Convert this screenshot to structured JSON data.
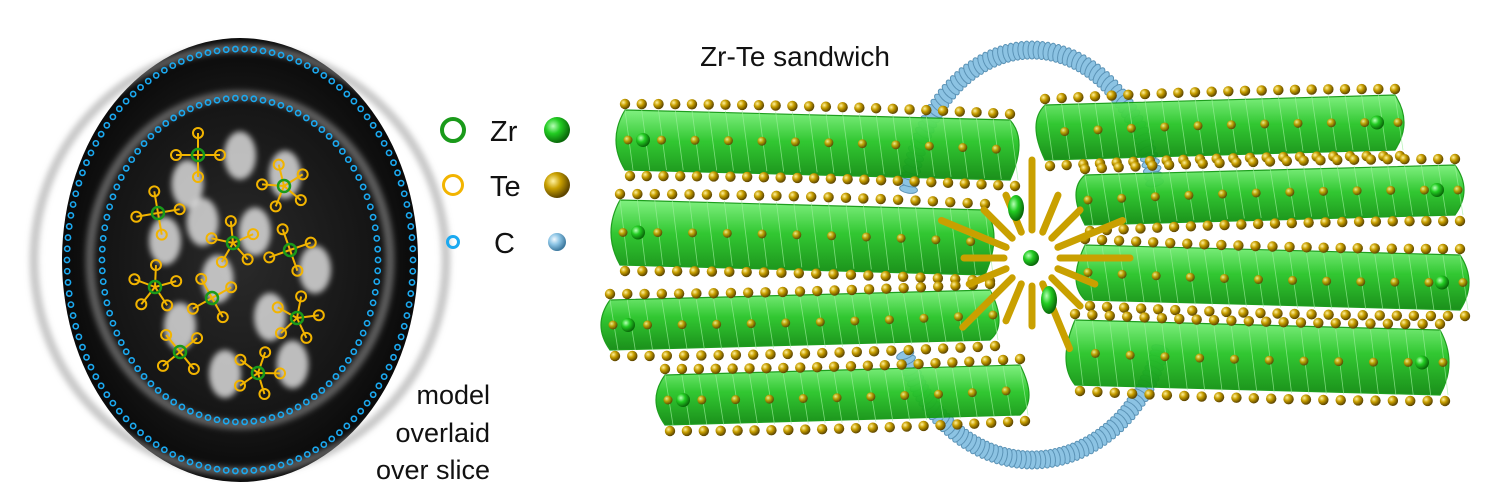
{
  "titles": {
    "sandwich": "Zr-Te sandwich"
  },
  "slice_caption": [
    "model",
    "overlaid",
    "over slice"
  ],
  "legend": [
    {
      "symbol": "Zr",
      "ring_color": "#1a9a1a",
      "sphere_color": "#22cc22"
    },
    {
      "symbol": "Te",
      "ring_color": "#f2b400",
      "sphere_color": "#c9a000"
    },
    {
      "symbol": "C",
      "ring_color": "#1ba9f0",
      "sphere_color": "#8ec6e6"
    }
  ],
  "colors": {
    "zr_polyhedra": "#2ed12e",
    "te_atoms": "#d4a900",
    "carbon_tube": "#8cc3e3",
    "slice_background": "#0d0d0d"
  }
}
